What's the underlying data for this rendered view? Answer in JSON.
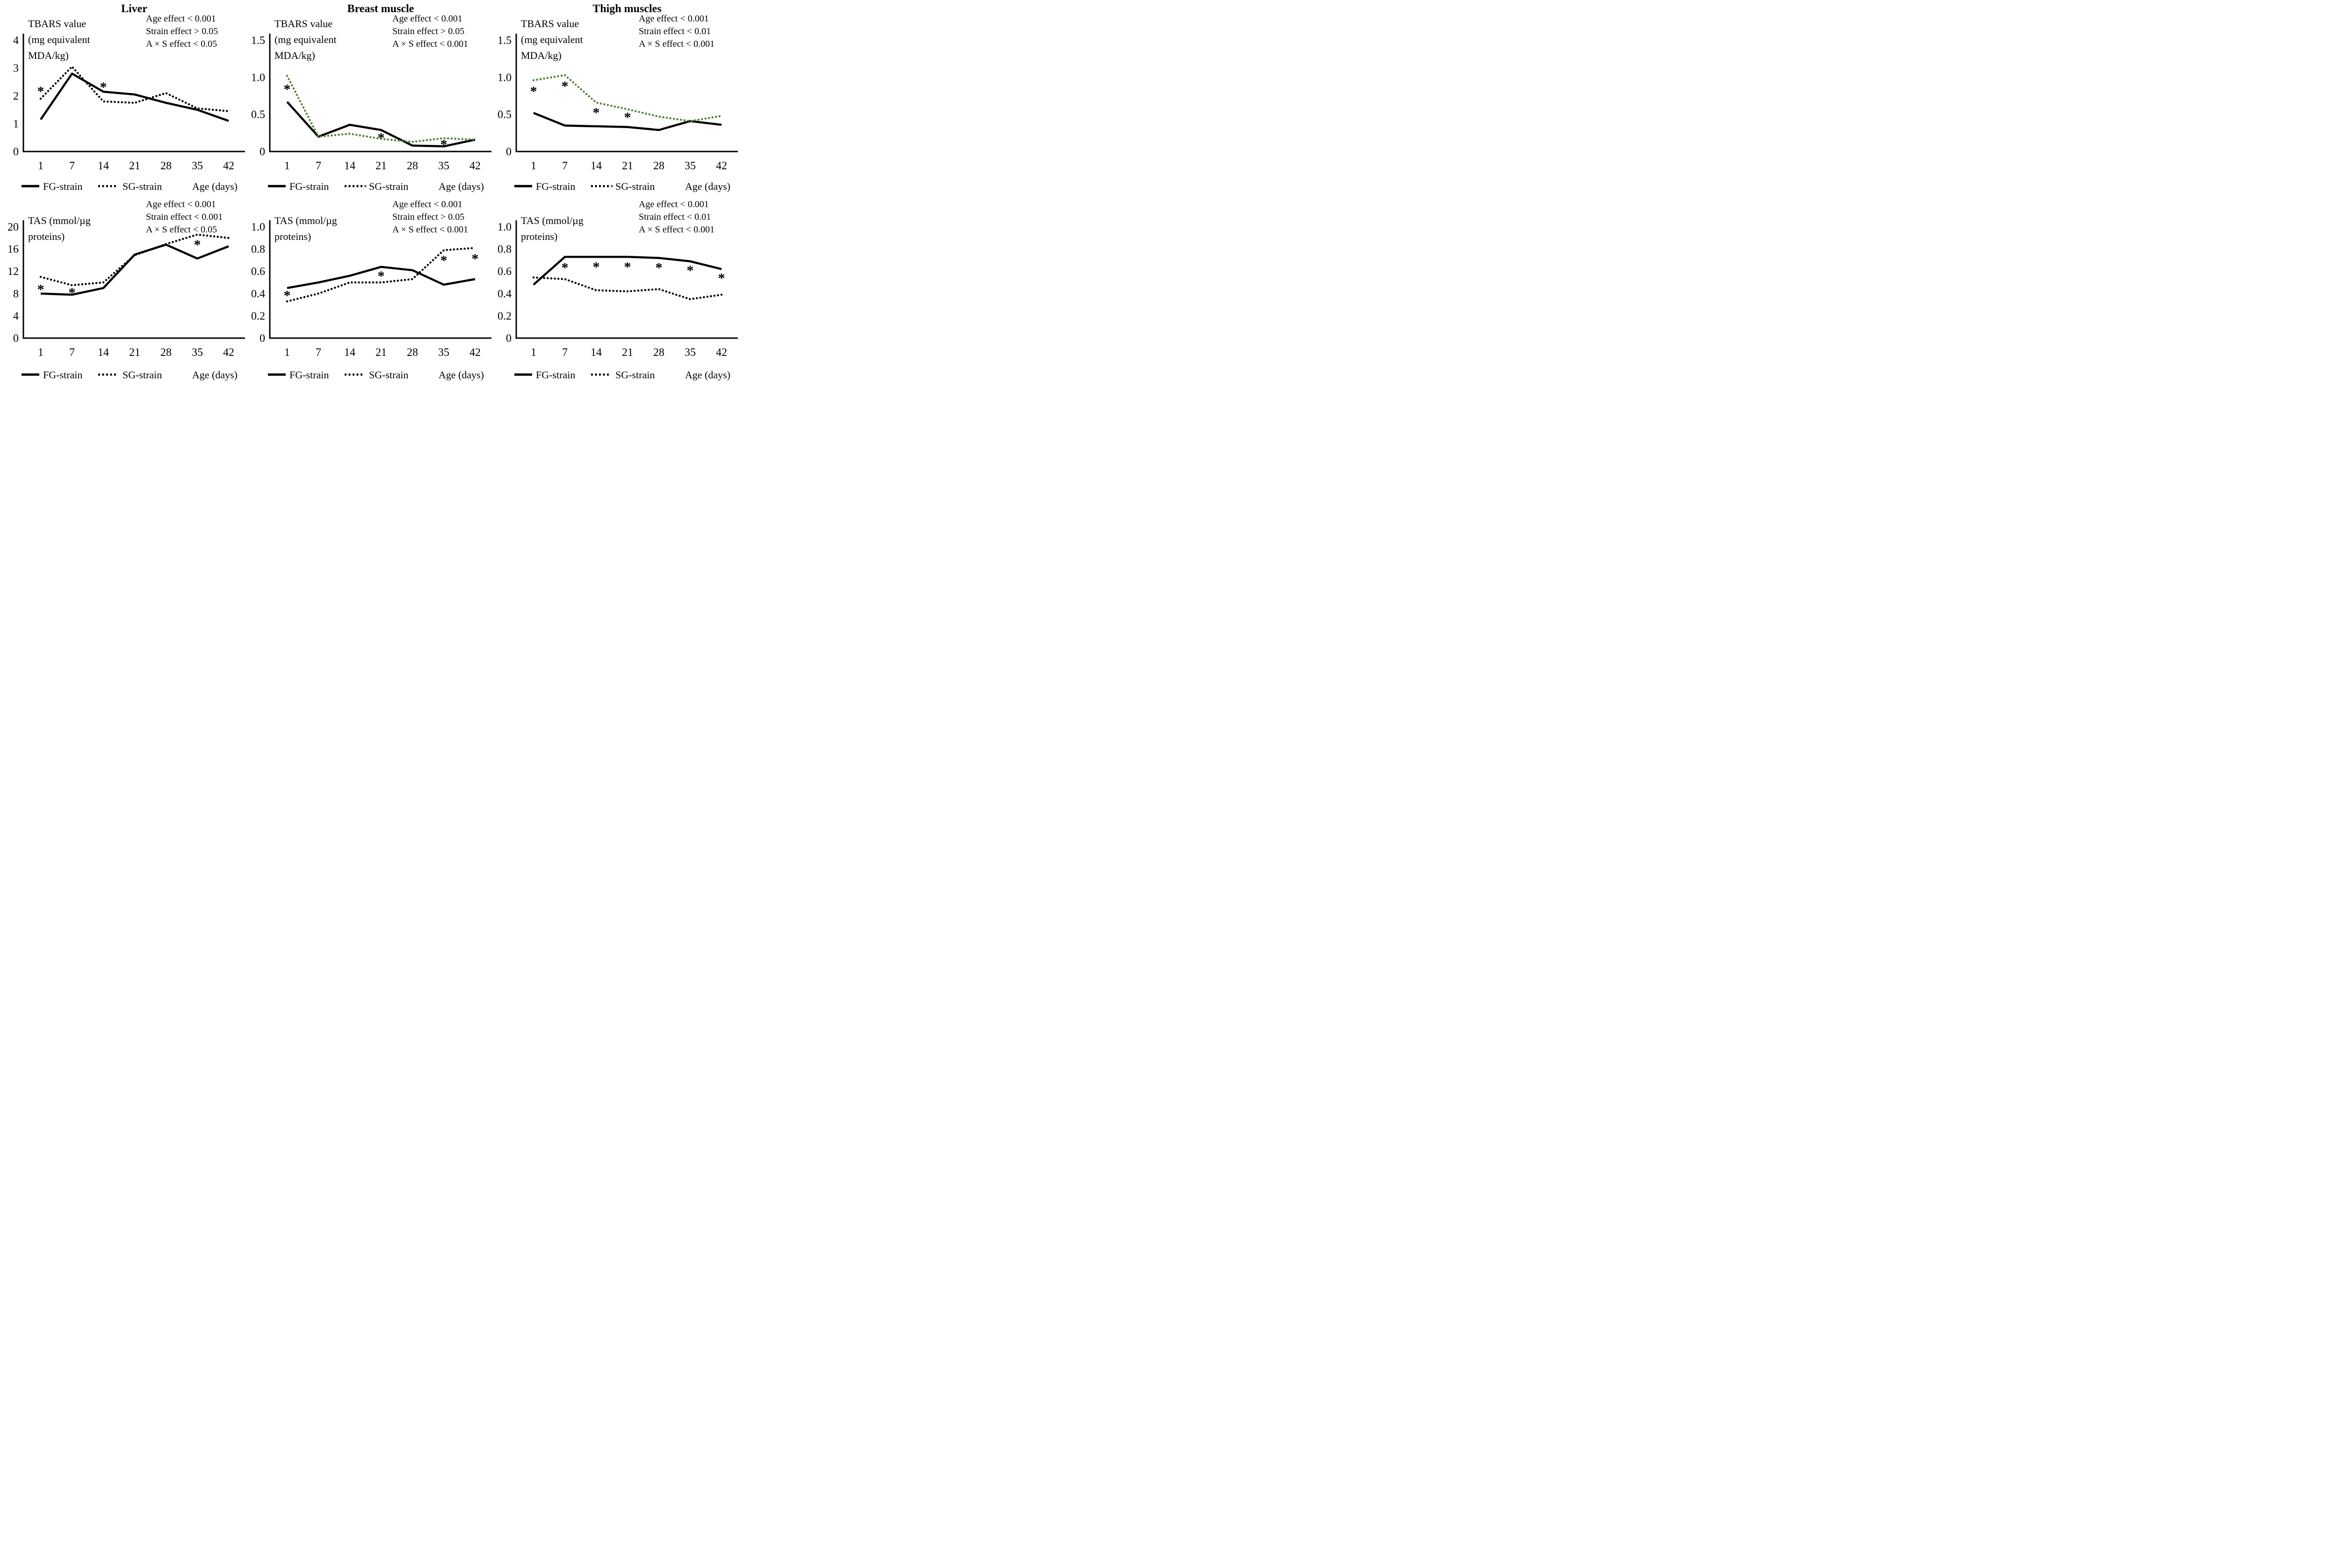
{
  "figure": {
    "asterisk": "*",
    "xlabel": "Age (days)",
    "ink": "#000000",
    "sg_green": "#548235",
    "background": "#ffffff",
    "column_titles": [
      "Liver",
      "Breast muscle",
      "Thigh muscles"
    ]
  },
  "chart_data": [
    {
      "type": "line",
      "title": "Liver",
      "measure": "TBARS",
      "ylabel_lines": [
        "TBARS value",
        "(mg equivalent",
        "MDA/kg)"
      ],
      "stats_lines": [
        "Age effect < 0.001",
        "Strain effect > 0.05",
        "A × S effect < 0.05"
      ],
      "x": [
        1,
        7,
        14,
        21,
        28,
        35,
        42
      ],
      "xlabel": "Age (days)",
      "ylim": [
        0,
        4
      ],
      "ytick_values": [
        0,
        1,
        2,
        3,
        4
      ],
      "yticks": [
        "0",
        "1",
        "2",
        "3",
        "4"
      ],
      "grid": false,
      "series": [
        {
          "name": "FG-strain",
          "line": "solid",
          "color": "#000000",
          "values": [
            1.15,
            2.8,
            2.15,
            2.05,
            1.75,
            1.5,
            1.1
          ]
        },
        {
          "name": "SG-strain",
          "line": "dotted",
          "color": "#000000",
          "values": [
            1.9,
            3.05,
            1.8,
            1.75,
            2.1,
            1.55,
            1.45
          ]
        }
      ],
      "asterisks": [
        {
          "day": 1,
          "value": 2.27
        },
        {
          "day": 14,
          "value": 2.42
        }
      ]
    },
    {
      "type": "line",
      "title": "Breast muscle",
      "measure": "TBARS",
      "ylabel_lines": [
        "TBARS value",
        "(mg equivalent",
        "MDA/kg)"
      ],
      "stats_lines": [
        "Age effect < 0.001",
        "Strain effect > 0.05",
        "A × S effect < 0.001"
      ],
      "x": [
        1,
        7,
        14,
        21,
        28,
        35,
        42
      ],
      "xlabel": "Age (days)",
      "ylim": [
        0,
        1.5
      ],
      "ytick_values": [
        0,
        0.5,
        1.0,
        1.5
      ],
      "yticks": [
        "0",
        "0.5",
        "1.0",
        "1.5"
      ],
      "grid": false,
      "series": [
        {
          "name": "FG-strain",
          "line": "solid",
          "color": "#000000",
          "values": [
            0.67,
            0.2,
            0.36,
            0.29,
            0.08,
            0.07,
            0.16
          ]
        },
        {
          "name": "SG-strain",
          "line": "dotted",
          "color": "#548235",
          "values": [
            1.02,
            0.2,
            0.24,
            0.17,
            0.13,
            0.18,
            0.16
          ]
        }
      ],
      "asterisks": [
        {
          "day": 1,
          "value": 0.88
        },
        {
          "day": 21,
          "value": 0.225
        },
        {
          "day": 35,
          "value": 0.135
        }
      ]
    },
    {
      "type": "line",
      "title": "Thigh muscles",
      "measure": "TBARS",
      "ylabel_lines": [
        "TBARS value",
        "(mg equivalent",
        "MDA/kg)"
      ],
      "stats_lines": [
        "Age effect < 0.001",
        "Strain effect < 0.01",
        "A × S effect < 0.001"
      ],
      "x": [
        1,
        7,
        14,
        21,
        28,
        35,
        42
      ],
      "xlabel": "Age (days)",
      "ylim": [
        0,
        1.5
      ],
      "ytick_values": [
        0,
        0.5,
        1.0,
        1.5
      ],
      "yticks": [
        "0",
        "0.5",
        "1.0",
        "1.5"
      ],
      "grid": false,
      "series": [
        {
          "name": "FG-strain",
          "line": "solid",
          "color": "#000000",
          "values": [
            0.52,
            0.35,
            0.34,
            0.33,
            0.29,
            0.41,
            0.36
          ]
        },
        {
          "name": "SG-strain",
          "line": "dotted",
          "color": "#548235",
          "values": [
            0.96,
            1.03,
            0.66,
            0.57,
            0.47,
            0.41,
            0.48
          ]
        }
      ],
      "asterisks": [
        {
          "day": 1,
          "value": 0.85
        },
        {
          "day": 7,
          "value": 0.92
        },
        {
          "day": 14,
          "value": 0.565
        },
        {
          "day": 21,
          "value": 0.5
        }
      ]
    },
    {
      "type": "line",
      "title": "",
      "measure": "TAS",
      "ylabel_lines": [
        "TAS (mmol/µg",
        "proteins)"
      ],
      "stats_lines": [
        "Age effect < 0.001",
        "Strain effect < 0.001",
        "A × S effect < 0.05"
      ],
      "x": [
        1,
        7,
        14,
        21,
        28,
        35,
        42
      ],
      "xlabel": "Age (days)",
      "ylim": [
        0,
        20
      ],
      "ytick_values": [
        0,
        4,
        8,
        12,
        16,
        20
      ],
      "yticks": [
        "0",
        "4",
        "8",
        "12",
        "16",
        "20"
      ],
      "grid": false,
      "series": [
        {
          "name": "FG-strain",
          "line": "solid",
          "color": "#000000",
          "values": [
            8.0,
            7.8,
            9.0,
            15.0,
            16.8,
            14.3,
            16.5
          ]
        },
        {
          "name": "SG-strain",
          "line": "dotted",
          "color": "#000000",
          "values": [
            11.0,
            9.5,
            10.0,
            14.9,
            16.9,
            18.6,
            18.0
          ]
        }
      ],
      "asterisks": [
        {
          "day": 1,
          "value": 9.3
        },
        {
          "day": 7,
          "value": 8.7
        },
        {
          "day": 35,
          "value": 17.3
        }
      ]
    },
    {
      "type": "line",
      "title": "",
      "measure": "TAS",
      "ylabel_lines": [
        "TAS (mmol/µg",
        "proteins)"
      ],
      "stats_lines": [
        "Age effect < 0.001",
        "Strain effect > 0.05",
        "A × S effect < 0.001"
      ],
      "x": [
        1,
        7,
        14,
        21,
        28,
        35,
        42
      ],
      "xlabel": "Age (days)",
      "ylim": [
        0,
        1.0
      ],
      "ytick_values": [
        0,
        0.2,
        0.4,
        0.6,
        0.8,
        1.0
      ],
      "yticks": [
        "0",
        "0.2",
        "0.4",
        "0.6",
        "0.8",
        "1.0"
      ],
      "grid": false,
      "series": [
        {
          "name": "FG-strain",
          "line": "solid",
          "color": "#000000",
          "values": [
            0.45,
            0.5,
            0.56,
            0.64,
            0.61,
            0.48,
            0.53
          ]
        },
        {
          "name": "SG-strain",
          "line": "dotted",
          "color": "#000000",
          "values": [
            0.33,
            0.4,
            0.5,
            0.5,
            0.53,
            0.79,
            0.81
          ]
        }
      ],
      "asterisks": [
        {
          "day": 1,
          "value": 0.41
        },
        {
          "day": 21,
          "value": 0.585
        },
        {
          "day": 35,
          "value": 0.725
        },
        {
          "day": 42,
          "value": 0.74
        }
      ]
    },
    {
      "type": "line",
      "title": "",
      "measure": "TAS",
      "ylabel_lines": [
        "TAS (mmol/µg",
        "proteins)"
      ],
      "stats_lines": [
        "Age effect < 0.001",
        "Strain effect < 0.01",
        "A × S effect < 0.001"
      ],
      "x": [
        1,
        7,
        14,
        21,
        28,
        35,
        42
      ],
      "xlabel": "Age (days)",
      "ylim": [
        0,
        1.0
      ],
      "ytick_values": [
        0,
        0.2,
        0.4,
        0.6,
        0.8,
        1.0
      ],
      "yticks": [
        "0",
        "0.2",
        "0.4",
        "0.6",
        "0.8",
        "1.0"
      ],
      "grid": false,
      "series": [
        {
          "name": "FG-strain",
          "line": "solid",
          "color": "#000000",
          "values": [
            0.48,
            0.73,
            0.73,
            0.73,
            0.72,
            0.69,
            0.62
          ]
        },
        {
          "name": "SG-strain",
          "line": "dotted",
          "color": "#000000",
          "values": [
            0.545,
            0.53,
            0.43,
            0.42,
            0.44,
            0.35,
            0.39
          ]
        }
      ],
      "asterisks": [
        {
          "day": 7,
          "value": 0.66
        },
        {
          "day": 14,
          "value": 0.665
        },
        {
          "day": 21,
          "value": 0.665
        },
        {
          "day": 28,
          "value": 0.66
        },
        {
          "day": 35,
          "value": 0.635
        },
        {
          "day": 42,
          "value": 0.565
        }
      ]
    }
  ]
}
